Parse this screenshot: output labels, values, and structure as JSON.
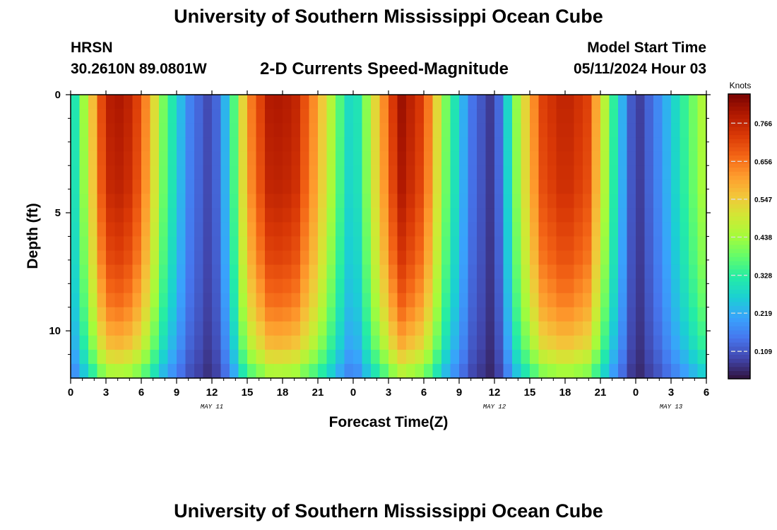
{
  "header": {
    "title": "University of Southern Mississippi Ocean Cube",
    "station": "HRSN",
    "coords": "30.2610N  89.0801W",
    "subtitle": "2-D Currents Speed-Magnitude",
    "start_label": "Model Start Time",
    "start_value": "05/11/2024 Hour 03"
  },
  "footer": {
    "title": "University of Southern Mississippi Ocean Cube"
  },
  "colors": {
    "colormap": [
      "#30123b",
      "#4145ab",
      "#4675ed",
      "#39a2fc",
      "#1bcfd4",
      "#24eca6",
      "#61fc6c",
      "#a4fc3b",
      "#d1e834",
      "#f3c63a",
      "#fe9b2d",
      "#f36315",
      "#d93806",
      "#b11901",
      "#7a0402"
    ]
  },
  "chart_data": {
    "type": "heatmap",
    "xlabel": "Forecast Time(Z)",
    "ylabel": "Depth (ft)",
    "x_tick_labels": [
      "0",
      "3",
      "6",
      "9",
      "12",
      "15",
      "18",
      "21",
      "0",
      "3",
      "6",
      "9",
      "12",
      "15",
      "18",
      "21",
      "0",
      "3",
      "6"
    ],
    "x_tick_values": [
      0,
      3,
      6,
      9,
      12,
      15,
      18,
      21,
      24,
      27,
      30,
      33,
      36,
      39,
      42,
      45,
      48,
      51,
      54
    ],
    "date_labels": [
      {
        "text": "MAY 11",
        "x": 12
      },
      {
        "text": "MAY 12",
        "x": 36
      },
      {
        "text": "MAY 13",
        "x": 51
      }
    ],
    "xlim": [
      0,
      54
    ],
    "y_tick_labels": [
      "0",
      "5",
      "10"
    ],
    "y_tick_values": [
      0,
      5,
      10
    ],
    "ylim": [
      12,
      0
    ],
    "colorbar": {
      "label": "Knots",
      "ticks": [
        "0.766",
        "0.656",
        "0.547",
        "0.438",
        "0.328",
        "0.219",
        "0.109"
      ],
      "tick_values": [
        0.766,
        0.656,
        0.547,
        0.438,
        0.328,
        0.219,
        0.109
      ],
      "range": [
        0.03,
        0.85
      ]
    },
    "surface_speed": [
      {
        "hour": 0,
        "knots": 0.25
      },
      {
        "hour": 1.5,
        "knots": 0.5
      },
      {
        "hour": 3,
        "knots": 0.78
      },
      {
        "hour": 4.5,
        "knots": 0.8
      },
      {
        "hour": 6,
        "knots": 0.7
      },
      {
        "hour": 8,
        "knots": 0.38
      },
      {
        "hour": 10,
        "knots": 0.17
      },
      {
        "hour": 12,
        "knots": 0.08
      },
      {
        "hour": 13.5,
        "knots": 0.28
      },
      {
        "hour": 15,
        "knots": 0.62
      },
      {
        "hour": 17,
        "knots": 0.8
      },
      {
        "hour": 19,
        "knots": 0.78
      },
      {
        "hour": 21,
        "knots": 0.6
      },
      {
        "hour": 23,
        "knots": 0.35
      },
      {
        "hour": 24,
        "knots": 0.25
      },
      {
        "hour": 26,
        "knots": 0.55
      },
      {
        "hour": 28,
        "knots": 0.82
      },
      {
        "hour": 30,
        "knots": 0.72
      },
      {
        "hour": 32,
        "knots": 0.38
      },
      {
        "hour": 34,
        "knots": 0.15
      },
      {
        "hour": 36,
        "knots": 0.06
      },
      {
        "hour": 38,
        "knots": 0.45
      },
      {
        "hour": 40,
        "knots": 0.72
      },
      {
        "hour": 42,
        "knots": 0.78
      },
      {
        "hour": 44,
        "knots": 0.72
      },
      {
        "hour": 46,
        "knots": 0.35
      },
      {
        "hour": 48,
        "knots": 0.06
      },
      {
        "hour": 50,
        "knots": 0.18
      },
      {
        "hour": 52,
        "knots": 0.33
      },
      {
        "hour": 54,
        "knots": 0.48
      }
    ],
    "depth_decay": [
      {
        "depth": 0,
        "factor": 1.0
      },
      {
        "depth": 4,
        "factor": 0.97
      },
      {
        "depth": 7,
        "factor": 0.9
      },
      {
        "depth": 9,
        "factor": 0.82
      },
      {
        "depth": 10.5,
        "factor": 0.72
      },
      {
        "depth": 11.5,
        "factor": 0.6
      },
      {
        "depth": 12,
        "factor": 0.5
      }
    ]
  }
}
